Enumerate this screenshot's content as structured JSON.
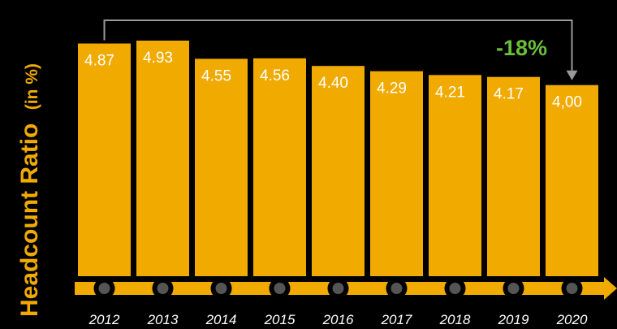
{
  "chart_data": {
    "type": "bar",
    "categories": [
      "2012",
      "2013",
      "2014",
      "2015",
      "2016",
      "2017",
      "2018",
      "2019",
      "2020"
    ],
    "values": [
      4.87,
      4.93,
      4.55,
      4.56,
      4.4,
      4.29,
      4.21,
      4.17,
      4.0
    ],
    "value_labels": [
      "4.87",
      "4.93",
      "4.55",
      "4.56",
      "4.40",
      "4.29",
      "4.21",
      "4.17",
      "4,00"
    ],
    "ylabel": "Headcount Ratio",
    "ylabel_unit": "(in %)",
    "annotation": "-18%",
    "ylim": [
      0,
      5.1
    ],
    "grid": false,
    "colors": {
      "bar": "#f0aa00",
      "axis": "#f0aa00",
      "label": "#f0aa00",
      "annotation": "#6abf3a",
      "bracket": "#999999",
      "background": "#000000",
      "wheel": "#555555"
    }
  }
}
